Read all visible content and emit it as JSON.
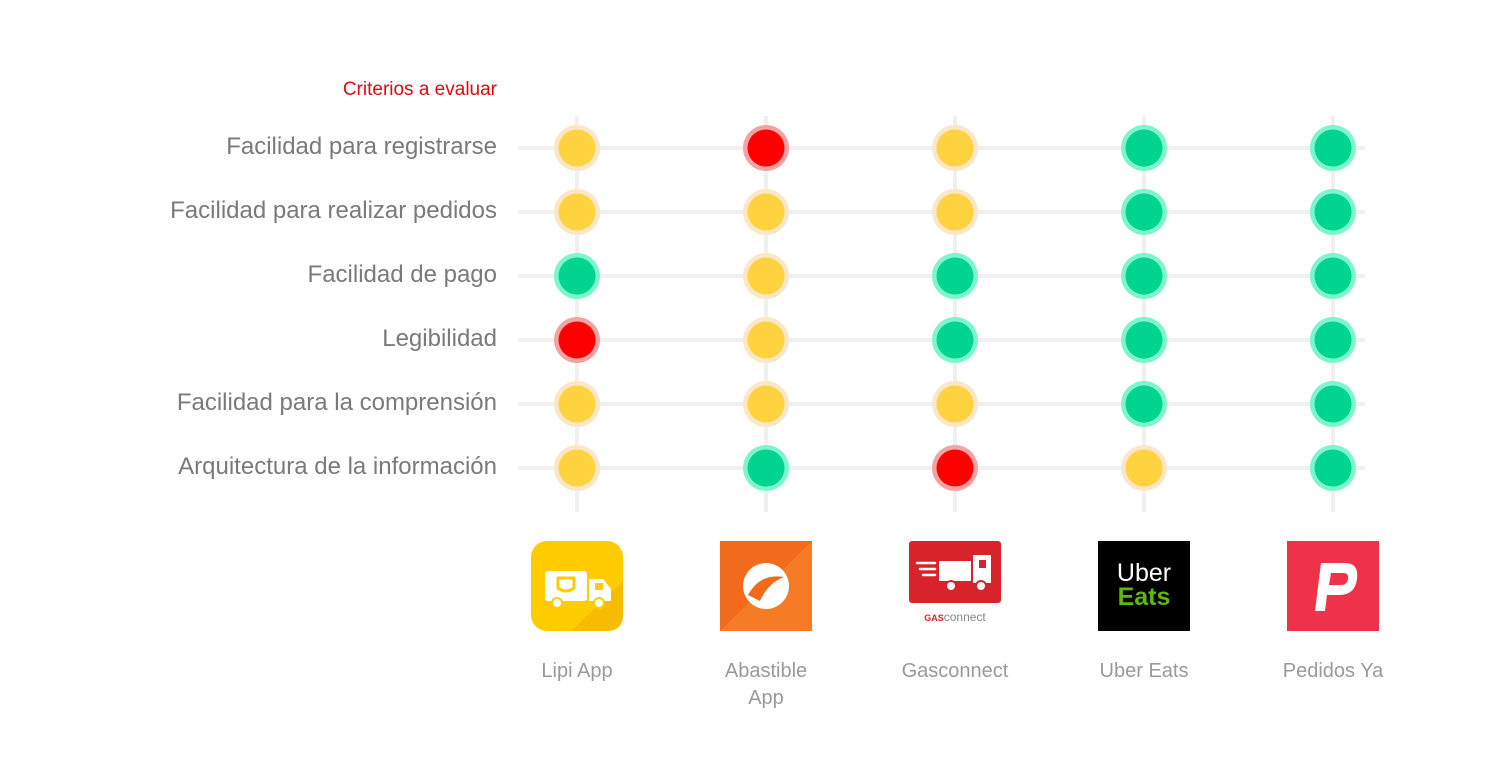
{
  "chart_data": {
    "type": "heatmap",
    "header": "Criterios a evaluar",
    "criteria": [
      "Facilidad para registrarse",
      "Facilidad para realizar pedidos",
      "Facilidad de pago",
      "Legibilidad",
      "Facilidad para la comprensión",
      "Arquitectura de la información"
    ],
    "apps": [
      {
        "name_lines": [
          "Lipi App"
        ],
        "icon": "lipi-truck-icon"
      },
      {
        "name_lines": [
          "Abastible",
          "App"
        ],
        "icon": "abastible-leaf-icon"
      },
      {
        "name_lines": [
          "Gasconnect"
        ],
        "icon": "gasconnect-truck-icon",
        "icon_text": [
          "GAS",
          "connect"
        ]
      },
      {
        "name_lines": [
          "Uber Eats"
        ],
        "icon": "uber-eats-icon",
        "icon_text": [
          "Uber",
          "Eats"
        ]
      },
      {
        "name_lines": [
          "Pedidos Ya"
        ],
        "icon": "pedidos-ya-p-icon"
      }
    ],
    "ratings": [
      [
        "yellow",
        "red",
        "yellow",
        "green",
        "green"
      ],
      [
        "yellow",
        "yellow",
        "yellow",
        "green",
        "green"
      ],
      [
        "green",
        "yellow",
        "green",
        "green",
        "green"
      ],
      [
        "red",
        "yellow",
        "green",
        "green",
        "green"
      ],
      [
        "yellow",
        "yellow",
        "yellow",
        "green",
        "green"
      ],
      [
        "yellow",
        "green",
        "red",
        "yellow",
        "green"
      ]
    ],
    "colors": {
      "yellow": {
        "fill": "#FFD23F",
        "halo": "#FCE6C8"
      },
      "red": {
        "fill": "#FF0000",
        "halo": "#F3A3A3"
      },
      "green": {
        "fill": "#00D48E",
        "halo": "#7EF5CC"
      },
      "grid": "#F0F0F0",
      "header": "#E30613",
      "criteria_text": "#7A7A7A",
      "app_text": "#9A9A9A",
      "lipi": "#FFCC00",
      "abastible": "#F26A1B",
      "gasconnect": "#D8232A",
      "uber_bg": "#000000",
      "uber_green": "#5FB709",
      "pedidos": "#F0314A"
    }
  }
}
